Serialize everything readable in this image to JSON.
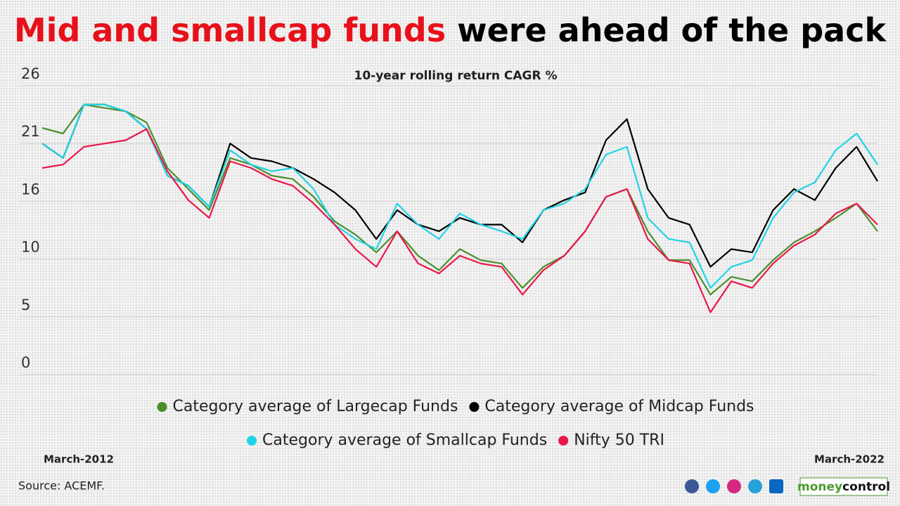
{
  "chart_data": {
    "type": "line",
    "title_highlight": "Mid and smallcap funds",
    "title_rest": "were ahead of the pack",
    "subtitle": "10-year rolling return CAGR %",
    "source": "Source: ACEMF.",
    "brand": [
      "money",
      "control"
    ],
    "categories": [
      "March-2012",
      null,
      null,
      null,
      null,
      null,
      null,
      null,
      null,
      null,
      null,
      null,
      null,
      null,
      null,
      null,
      null,
      null,
      null,
      null,
      null,
      null,
      null,
      null,
      null,
      null,
      null,
      null,
      null,
      null,
      null,
      null,
      null,
      null,
      null,
      null,
      null,
      null,
      null,
      null,
      "March-2022"
    ],
    "ylim": [
      0,
      26
    ],
    "yticks": [
      0,
      {
        "value": 5.2,
        "label": "5"
      },
      {
        "value": 10.4,
        "label": "10"
      },
      {
        "value": 15.6,
        "label": "16"
      },
      {
        "value": 20.8,
        "label": "21"
      },
      26
    ],
    "grid": true,
    "series": [
      {
        "name": "Category average of Largecap Funds",
        "color": "#4a8f2c",
        "values": [
          22.2,
          21.7,
          24.3,
          24.0,
          23.7,
          22.7,
          18.6,
          16.7,
          14.8,
          19.5,
          18.9,
          17.9,
          17.6,
          16.0,
          13.8,
          12.6,
          11.0,
          12.9,
          10.7,
          9.4,
          11.3,
          10.3,
          10.0,
          7.8,
          9.7,
          10.7,
          12.9,
          16.0,
          16.7,
          12.9,
          10.3,
          10.3,
          7.2,
          8.8,
          8.4,
          10.3,
          11.9,
          12.9,
          14.1,
          15.4,
          12.9
        ]
      },
      {
        "name": "Category average of Midcap Funds",
        "color": "#000000",
        "values": [
          20.8,
          19.5,
          24.3,
          24.3,
          23.7,
          22.1,
          17.9,
          17.0,
          15.1,
          20.8,
          19.5,
          19.2,
          18.6,
          17.6,
          16.4,
          14.8,
          12.2,
          14.8,
          13.5,
          12.9,
          14.1,
          13.5,
          13.5,
          11.9,
          14.8,
          15.7,
          16.4,
          21.1,
          23.0,
          16.7,
          14.1,
          13.5,
          9.7,
          11.3,
          11.0,
          14.8,
          16.7,
          15.7,
          18.6,
          20.5,
          17.4
        ]
      },
      {
        "name": "Category average of Smallcap Funds",
        "color": "#1fd3e6",
        "values": [
          20.8,
          19.5,
          24.3,
          24.3,
          23.7,
          22.1,
          17.9,
          17.0,
          15.1,
          20.2,
          18.9,
          18.3,
          18.6,
          16.7,
          13.5,
          12.2,
          11.3,
          15.4,
          13.5,
          12.2,
          14.5,
          13.5,
          12.9,
          12.2,
          14.8,
          15.4,
          16.7,
          19.8,
          20.5,
          14.1,
          12.2,
          11.9,
          7.8,
          9.7,
          10.3,
          14.1,
          16.4,
          17.3,
          20.2,
          21.7,
          18.9
        ]
      },
      {
        "name": "Nifty 50 TRI",
        "color": "#e8174a",
        "values": [
          18.6,
          18.9,
          20.5,
          20.8,
          21.1,
          22.1,
          18.3,
          15.7,
          14.1,
          19.2,
          18.6,
          17.6,
          17.0,
          15.4,
          13.5,
          11.3,
          9.7,
          12.9,
          10.0,
          9.1,
          10.7,
          10.0,
          9.7,
          7.2,
          9.4,
          10.7,
          12.9,
          16.0,
          16.7,
          12.2,
          10.3,
          10.0,
          5.6,
          8.4,
          7.8,
          10.0,
          11.6,
          12.6,
          14.5,
          15.4,
          13.5
        ]
      }
    ]
  }
}
